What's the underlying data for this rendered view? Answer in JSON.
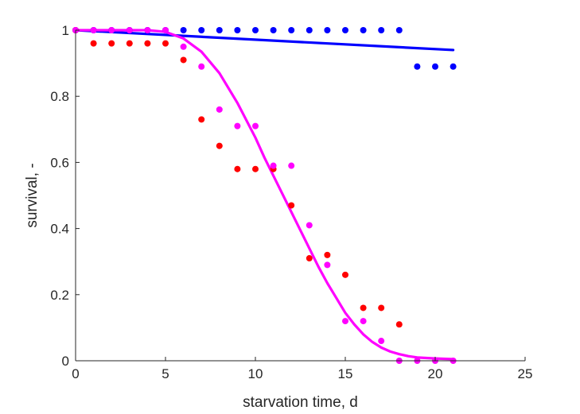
{
  "chart_data": {
    "type": "scatter",
    "xlabel": "starvation time, d",
    "ylabel": "survival, -",
    "xlim": [
      0,
      25
    ],
    "ylim": [
      0,
      1
    ],
    "xticks": [
      "0",
      "5",
      "10",
      "15",
      "20",
      "25"
    ],
    "yticks": [
      "0",
      "0.2",
      "0.4",
      "0.6",
      "0.8",
      "1"
    ],
    "grid": false,
    "series": [
      {
        "kind": "points",
        "color": "#0000ff",
        "x": [
          0,
          1,
          2,
          3,
          4,
          5,
          6,
          7,
          8,
          9,
          10,
          11,
          12,
          13,
          14,
          15,
          16,
          17,
          18,
          19,
          20,
          21
        ],
        "y": [
          1,
          1,
          1,
          1,
          1,
          1,
          1,
          1,
          1,
          1,
          1,
          1,
          1,
          1,
          1,
          1,
          1,
          1,
          1,
          0.89,
          0.89,
          0.89
        ]
      },
      {
        "kind": "points",
        "color": "#ff0000",
        "x": [
          0,
          1,
          2,
          3,
          4,
          5,
          6,
          7,
          8,
          9,
          10,
          11,
          12,
          13,
          14,
          15,
          16,
          17,
          18
        ],
        "y": [
          1,
          0.96,
          0.96,
          0.96,
          0.96,
          0.96,
          0.91,
          0.73,
          0.65,
          0.58,
          0.58,
          0.58,
          0.47,
          0.31,
          0.32,
          0.26,
          0.16,
          0.16,
          0.11
        ]
      },
      {
        "kind": "points",
        "color": "#ff00ff",
        "x": [
          0,
          1,
          2,
          3,
          4,
          5,
          6,
          7,
          8,
          9,
          10,
          11,
          12,
          13,
          14,
          15,
          16,
          17,
          18,
          19,
          20,
          21
        ],
        "y": [
          1,
          1,
          1,
          1,
          1,
          1,
          0.95,
          0.89,
          0.76,
          0.71,
          0.71,
          0.59,
          0.59,
          0.41,
          0.29,
          0.12,
          0.12,
          0.06,
          0,
          0,
          0,
          0
        ]
      },
      {
        "kind": "line",
        "color": "#0000ff",
        "x": [
          0,
          21
        ],
        "y": [
          1,
          0.94
        ]
      },
      {
        "kind": "line",
        "color": "#ff00ff",
        "x": [
          0,
          1,
          2,
          3,
          4,
          5,
          6,
          7,
          8,
          9,
          10,
          10.5,
          11,
          11.5,
          12,
          12.5,
          13,
          13.5,
          14,
          14.5,
          15,
          15.5,
          16,
          16.5,
          17,
          17.5,
          18,
          18.5,
          19,
          20,
          21
        ],
        "y": [
          1,
          1,
          1,
          1,
          1,
          0.995,
          0.975,
          0.935,
          0.87,
          0.78,
          0.675,
          0.615,
          0.56,
          0.505,
          0.45,
          0.395,
          0.34,
          0.285,
          0.235,
          0.19,
          0.145,
          0.11,
          0.08,
          0.057,
          0.04,
          0.028,
          0.02,
          0.014,
          0.01,
          0.007,
          0.005
        ]
      }
    ]
  }
}
